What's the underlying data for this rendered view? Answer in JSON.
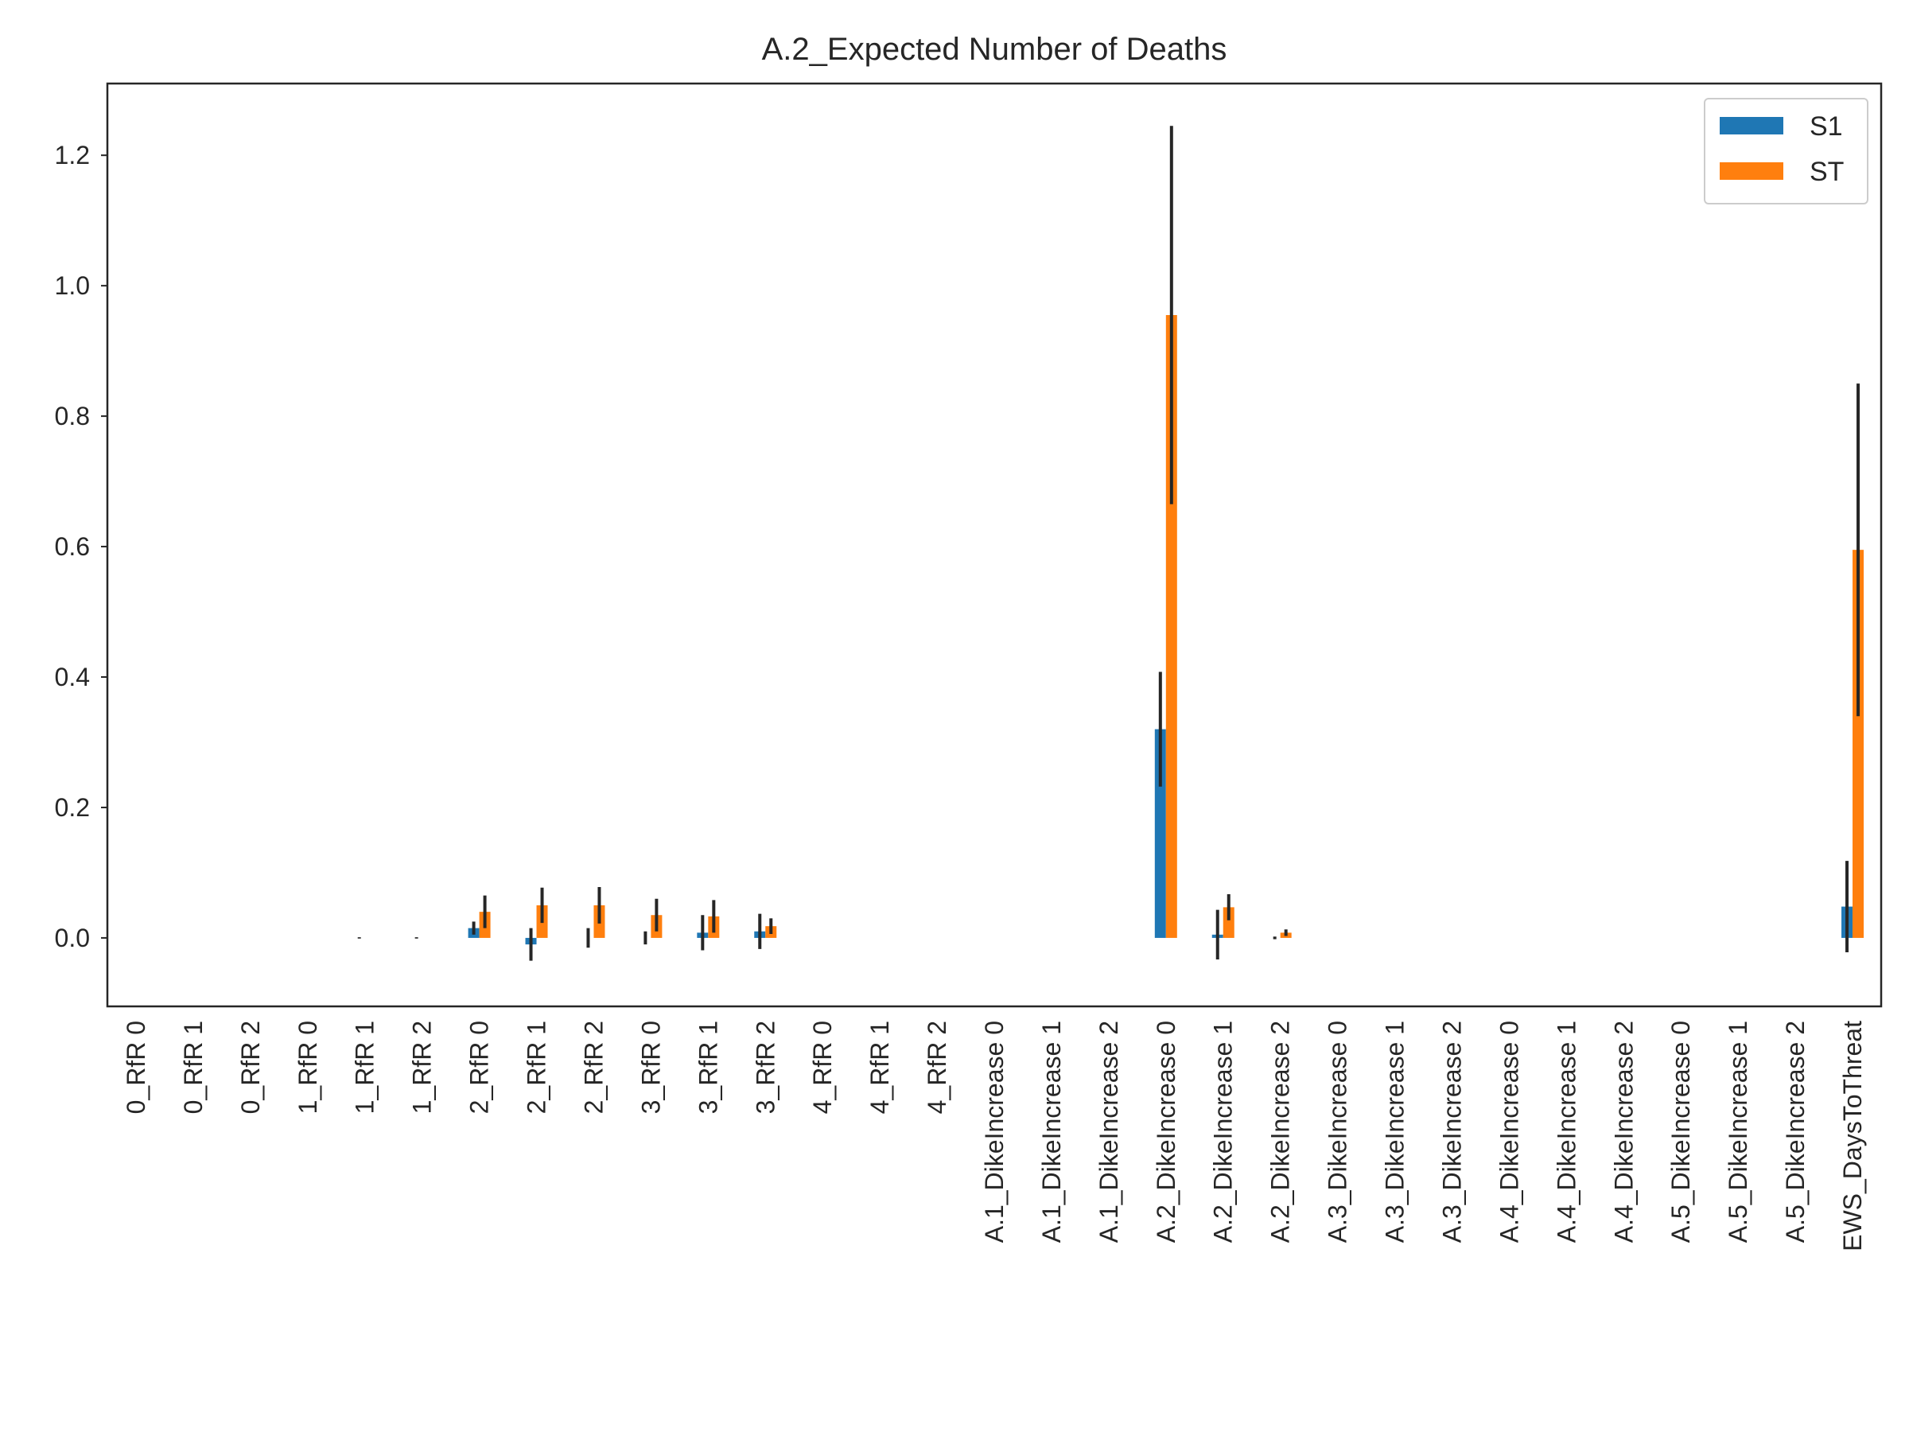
{
  "chart_data": {
    "type": "bar",
    "title": "A.2_Expected Number of Deaths",
    "xlabel": "",
    "ylabel": "",
    "ylim": [
      -0.105,
      1.31
    ],
    "yticks": [
      "0.0",
      "0.2",
      "0.4",
      "0.6",
      "0.8",
      "1.0",
      "1.2"
    ],
    "grid": false,
    "legend_position": "top-right",
    "categories": [
      "0_RfR 0",
      "0_RfR 1",
      "0_RfR 2",
      "1_RfR 0",
      "1_RfR 1",
      "1_RfR 2",
      "2_RfR 0",
      "2_RfR 1",
      "2_RfR 2",
      "3_RfR 0",
      "3_RfR 1",
      "3_RfR 2",
      "4_RfR 0",
      "4_RfR 1",
      "4_RfR 2",
      "A.1_DikeIncrease 0",
      "A.1_DikeIncrease 1",
      "A.1_DikeIncrease 2",
      "A.2_DikeIncrease 0",
      "A.2_DikeIncrease 1",
      "A.2_DikeIncrease 2",
      "A.3_DikeIncrease 0",
      "A.3_DikeIncrease 1",
      "A.3_DikeIncrease 2",
      "A.4_DikeIncrease 0",
      "A.4_DikeIncrease 1",
      "A.4_DikeIncrease 2",
      "A.5_DikeIncrease 0",
      "A.5_DikeIncrease 1",
      "A.5_DikeIncrease 2",
      "EWS_DaysToThreat"
    ],
    "series": [
      {
        "name": "S1",
        "color": "#1f77b4",
        "values": [
          0,
          0,
          0,
          0,
          0,
          0,
          0.015,
          -0.01,
          0,
          0,
          0.008,
          0.01,
          0,
          0,
          0,
          0,
          0,
          0,
          0.32,
          0.005,
          0,
          0,
          0,
          0,
          0,
          0,
          0,
          0,
          0,
          0,
          0.048
        ],
        "errors": [
          0,
          0,
          0,
          0,
          0.001,
          0.001,
          0.01,
          0.025,
          0.015,
          0.01,
          0.027,
          0.027,
          0,
          0,
          0,
          0,
          0,
          0,
          0.088,
          0.038,
          0.002,
          0,
          0,
          0,
          0,
          0,
          0,
          0,
          0,
          0,
          0.07
        ]
      },
      {
        "name": "ST",
        "color": "#ff7f0e",
        "values": [
          0,
          0,
          0,
          0,
          0,
          0,
          0.04,
          0.05,
          0.05,
          0.035,
          0.033,
          0.018,
          0,
          0,
          0,
          0,
          0,
          0,
          0.955,
          0.047,
          0.008,
          0,
          0,
          0,
          0,
          0,
          0,
          0,
          0,
          0,
          0.595
        ],
        "errors": [
          0,
          0,
          0,
          0,
          0,
          0,
          0.025,
          0.027,
          0.028,
          0.025,
          0.025,
          0.012,
          0,
          0,
          0,
          0,
          0,
          0,
          0.29,
          0.02,
          0.005,
          0,
          0,
          0,
          0,
          0,
          0,
          0,
          0,
          0,
          0.255
        ]
      }
    ]
  }
}
